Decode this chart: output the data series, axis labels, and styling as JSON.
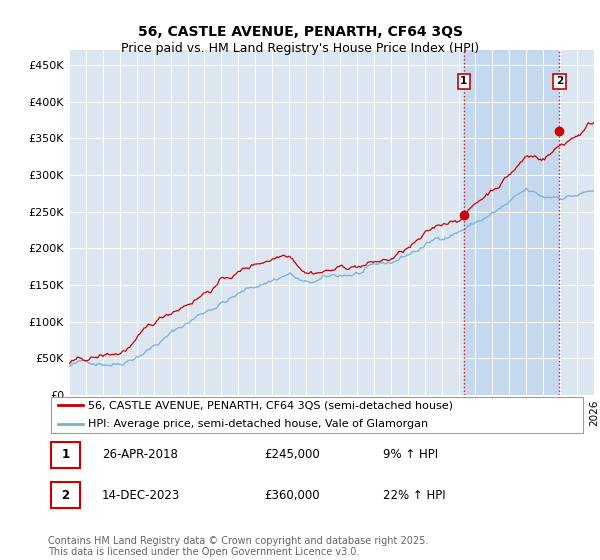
{
  "title": "56, CASTLE AVENUE, PENARTH, CF64 3QS",
  "subtitle": "Price paid vs. HM Land Registry's House Price Index (HPI)",
  "ylim": [
    0,
    470000
  ],
  "yticks": [
    0,
    50000,
    100000,
    150000,
    200000,
    250000,
    300000,
    350000,
    400000,
    450000
  ],
  "ytick_labels": [
    "£0",
    "£50K",
    "£100K",
    "£150K",
    "£200K",
    "£250K",
    "£300K",
    "£350K",
    "£400K",
    "£450K"
  ],
  "x_start_year": 1995,
  "x_end_year": 2026,
  "background_color": "#ffffff",
  "plot_bg_color": "#dce6f0",
  "plot_bg_shaded": "#c5d8ed",
  "grid_color": "#ffffff",
  "line1_color": "#cc0000",
  "line2_color": "#7ab0d4",
  "vline_color": "#cc0000",
  "marker1": {
    "year": 2018.32,
    "value": 245000,
    "label": "1"
  },
  "marker2": {
    "year": 2023.95,
    "value": 360000,
    "label": "2"
  },
  "legend_line1": "56, CASTLE AVENUE, PENARTH, CF64 3QS (semi-detached house)",
  "legend_line2": "HPI: Average price, semi-detached house, Vale of Glamorgan",
  "table_entries": [
    {
      "num": "1",
      "date": "26-APR-2018",
      "price": "£245,000",
      "hpi": "9% ↑ HPI"
    },
    {
      "num": "2",
      "date": "14-DEC-2023",
      "price": "£360,000",
      "hpi": "22% ↑ HPI"
    }
  ],
  "footer": "Contains HM Land Registry data © Crown copyright and database right 2025.\nThis data is licensed under the Open Government Licence v3.0.",
  "title_fontsize": 10,
  "subtitle_fontsize": 9,
  "tick_fontsize": 8,
  "legend_fontsize": 8,
  "table_fontsize": 8.5,
  "footer_fontsize": 7
}
